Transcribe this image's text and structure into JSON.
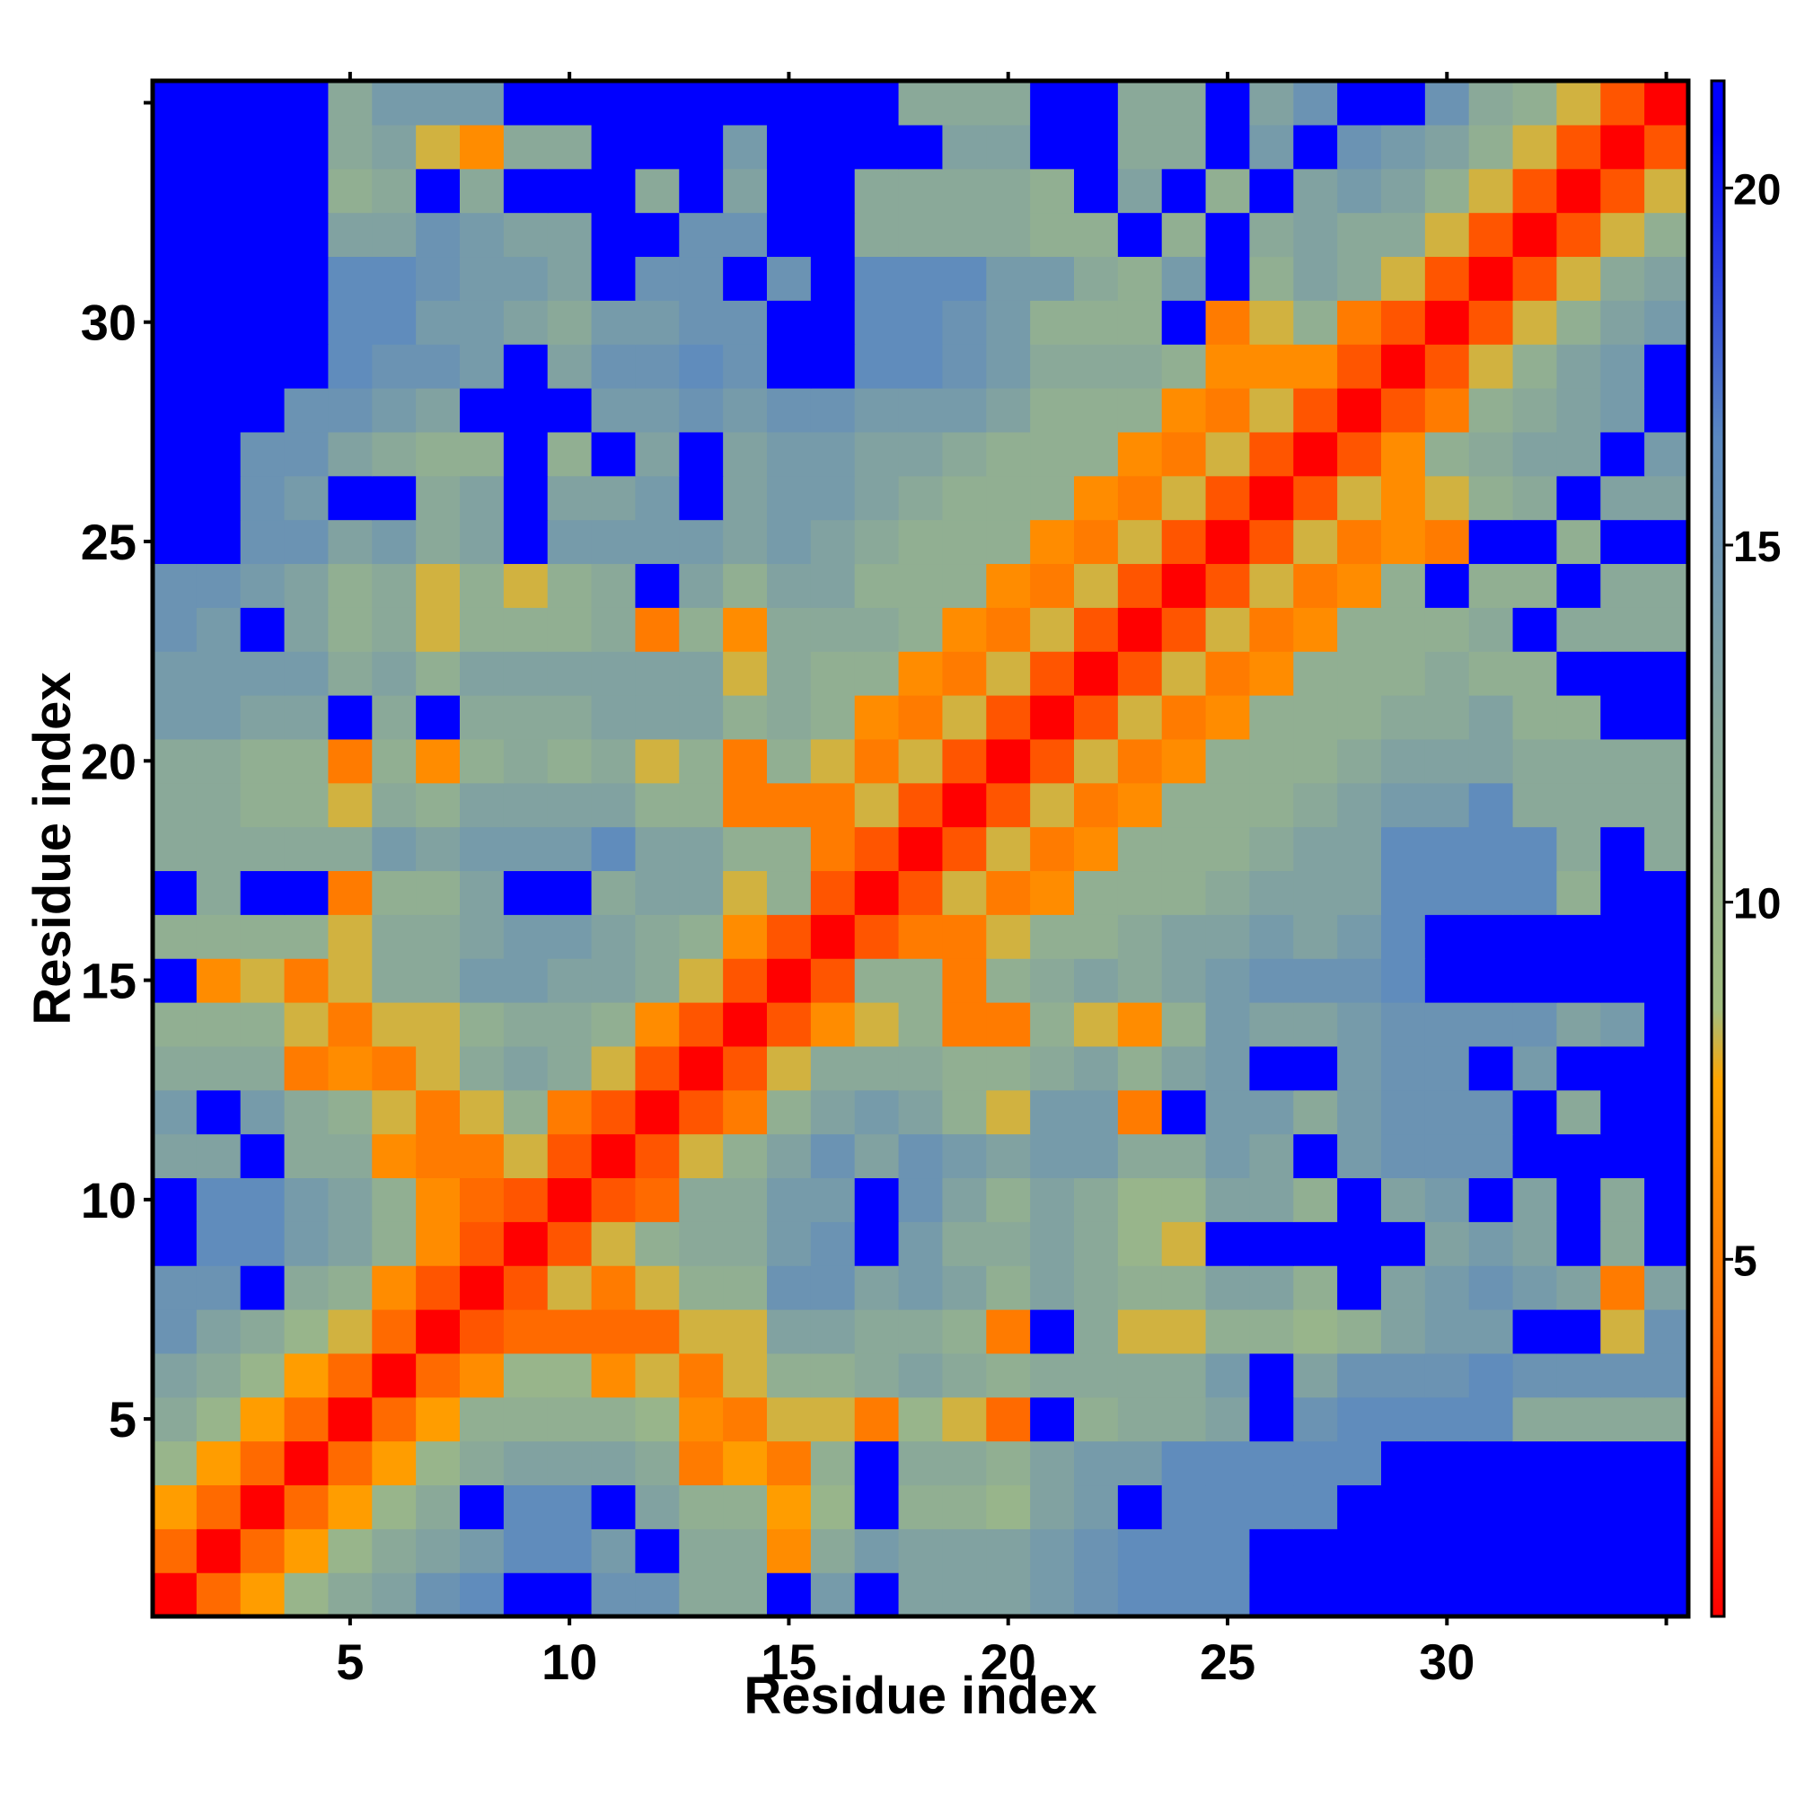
{
  "chart_data": {
    "type": "heatmap",
    "title": "",
    "xlabel": "Residue index",
    "ylabel": "Residue index",
    "n": 35,
    "xticks": [
      5,
      10,
      15,
      20,
      25,
      30
    ],
    "yticks": [
      5,
      10,
      15,
      20,
      25,
      30
    ],
    "xlim": [
      0.5,
      35.5
    ],
    "ylim": [
      0.5,
      35.5
    ],
    "colorbar": {
      "range": [
        0,
        21.5
      ],
      "ticks": [
        5,
        10,
        15,
        20
      ],
      "stops": [
        {
          "value": 0,
          "color": "#ff0000"
        },
        {
          "value": 3.4,
          "color": "#ff6000"
        },
        {
          "value": 7.5,
          "color": "#ffa500"
        },
        {
          "value": 8.5,
          "color": "#a2be80"
        },
        {
          "value": 12.5,
          "color": "#86a69c"
        },
        {
          "value": 16.5,
          "color": "#5a88c0"
        },
        {
          "value": 20.8,
          "color": "#0000ff"
        },
        {
          "value": 21.5,
          "color": "#0000ff"
        }
      ]
    },
    "note_rows": "values[i] is row for residue i+1 (bottom to top); values[i][j] is column residue j+1 (left to right)",
    "values": [
      [
        0,
        4,
        7,
        10,
        12,
        13,
        15,
        16,
        21,
        21,
        15,
        15,
        12,
        12,
        21,
        14,
        21,
        13,
        13,
        13,
        14,
        15,
        16,
        16,
        16,
        21,
        21,
        21,
        21,
        21,
        21,
        21,
        21,
        21,
        21
      ],
      [
        4,
        0,
        4,
        7,
        10,
        12,
        13,
        14,
        16,
        16,
        14,
        21,
        12,
        12,
        6,
        12,
        14,
        13,
        13,
        13,
        14,
        15,
        16,
        16,
        16,
        21,
        21,
        21,
        21,
        21,
        21,
        21,
        21,
        21,
        21
      ],
      [
        7,
        4,
        0,
        4,
        7,
        10,
        12,
        21,
        16,
        16,
        21,
        13,
        11,
        11,
        7,
        10,
        21,
        11,
        11,
        10,
        13,
        14,
        21,
        16,
        16,
        16,
        16,
        21,
        21,
        21,
        21,
        21,
        21,
        21,
        21
      ],
      [
        10,
        7,
        4,
        0,
        4,
        7,
        10,
        12,
        13,
        13,
        13,
        12,
        5,
        7,
        5,
        11,
        21,
        12,
        12,
        11,
        13,
        14,
        14,
        16,
        16,
        16,
        16,
        16,
        21,
        21,
        21,
        21,
        21,
        21,
        21
      ],
      [
        12,
        10,
        7,
        4,
        0,
        4,
        7,
        11,
        11,
        11,
        11,
        10,
        6,
        5,
        8,
        8,
        5,
        10,
        8,
        4,
        21,
        11,
        12,
        12,
        13,
        21,
        15,
        16,
        16,
        16,
        16,
        12,
        12,
        12,
        12
      ],
      [
        13,
        12,
        10,
        7,
        4,
        0,
        4,
        6,
        10,
        10,
        6,
        8,
        5,
        8,
        11,
        11,
        12,
        13,
        12,
        11,
        12,
        12,
        12,
        12,
        14,
        21,
        13,
        15,
        15,
        15,
        16,
        15,
        15,
        15,
        15
      ],
      [
        15,
        13,
        12,
        10,
        8,
        4,
        0,
        3,
        4,
        4,
        4,
        4,
        8,
        8,
        13,
        13,
        12,
        12,
        11,
        5,
        21,
        12,
        8,
        8,
        11,
        11,
        10,
        11,
        13,
        14,
        14,
        21,
        21,
        8,
        15
      ],
      [
        15,
        15,
        21,
        12,
        11,
        6,
        3,
        0,
        3,
        8,
        5,
        8,
        11,
        11,
        15,
        15,
        13,
        14,
        13,
        11,
        13,
        12,
        11,
        11,
        13,
        13,
        11,
        21,
        13,
        14,
        15,
        14,
        13,
        5,
        13
      ],
      [
        21,
        16,
        16,
        14,
        13,
        11,
        6,
        3,
        0,
        3,
        8,
        11,
        12,
        12,
        14,
        15,
        21,
        14,
        12,
        12,
        13,
        12,
        10,
        8,
        21,
        21,
        21,
        21,
        21,
        13,
        14,
        13,
        21,
        12,
        21
      ],
      [
        21,
        16,
        16,
        14,
        13,
        11,
        6,
        4,
        3,
        0,
        3,
        4,
        12,
        12,
        14,
        14,
        21,
        15,
        13,
        11,
        13,
        12,
        10,
        10,
        13,
        13,
        11,
        21,
        13,
        14,
        21,
        13,
        21,
        12,
        21
      ],
      [
        13,
        13,
        21,
        12,
        12,
        6,
        5,
        5,
        8,
        3,
        0,
        3,
        8,
        11,
        13,
        15,
        13,
        15,
        14,
        13,
        14,
        14,
        12,
        12,
        14,
        13,
        21,
        14,
        15,
        15,
        15,
        21,
        21,
        21,
        21
      ],
      [
        14,
        21,
        14,
        12,
        11,
        8,
        5,
        8,
        11,
        5,
        3,
        0,
        3,
        5,
        11,
        13,
        14,
        13,
        11,
        8,
        14,
        14,
        5,
        21,
        14,
        14,
        12,
        14,
        15,
        15,
        15,
        21,
        12,
        21,
        21
      ],
      [
        12,
        12,
        12,
        5,
        6,
        5,
        8,
        12,
        13,
        12,
        8,
        3,
        0,
        3,
        8,
        12,
        12,
        12,
        11,
        11,
        12,
        13,
        11,
        13,
        14,
        21,
        21,
        14,
        15,
        15,
        21,
        14,
        21,
        21,
        21
      ],
      [
        11,
        11,
        11,
        8,
        5,
        8,
        8,
        11,
        12,
        12,
        11,
        6,
        3,
        0,
        3,
        6,
        8,
        11,
        5,
        5,
        11,
        8,
        6,
        11,
        14,
        13,
        13,
        14,
        15,
        15,
        15,
        15,
        13,
        14,
        21
      ],
      [
        21,
        6,
        8,
        5,
        8,
        12,
        12,
        14,
        14,
        13,
        13,
        12,
        8,
        3,
        0,
        3,
        11,
        11,
        5,
        11,
        12,
        13,
        12,
        13,
        14,
        15,
        15,
        15,
        16,
        21,
        21,
        21,
        21,
        21,
        21
      ],
      [
        11,
        11,
        11,
        11,
        8,
        12,
        12,
        13,
        14,
        14,
        13,
        12,
        11,
        6,
        3,
        0,
        3,
        5,
        5,
        8,
        11,
        11,
        12,
        13,
        13,
        14,
        13,
        14,
        16,
        21,
        21,
        21,
        21,
        21,
        21
      ],
      [
        21,
        12,
        21,
        21,
        5,
        11,
        11,
        13,
        21,
        21,
        12,
        13,
        13,
        8,
        11,
        3,
        0,
        3,
        8,
        5,
        6,
        11,
        11,
        11,
        12,
        13,
        13,
        13,
        16,
        16,
        16,
        16,
        11,
        21,
        21
      ],
      [
        12,
        12,
        12,
        12,
        12,
        14,
        13,
        14,
        14,
        14,
        16,
        13,
        13,
        11,
        11,
        5,
        3,
        0,
        3,
        8,
        5,
        6,
        11,
        11,
        11,
        12,
        13,
        13,
        16,
        16,
        16,
        16,
        12,
        21,
        12
      ],
      [
        12,
        12,
        11,
        11,
        8,
        12,
        11,
        13,
        13,
        13,
        13,
        11,
        11,
        5,
        5,
        5,
        8,
        3,
        0,
        3,
        8,
        5,
        6,
        11,
        11,
        11,
        12,
        13,
        14,
        14,
        16,
        12,
        12,
        12,
        12
      ],
      [
        12,
        12,
        11,
        11,
        5,
        11,
        6,
        11,
        12,
        11,
        12,
        8,
        11,
        5,
        11,
        8,
        5,
        8,
        3,
        0,
        3,
        8,
        5,
        6,
        11,
        11,
        11,
        12,
        13,
        13,
        13,
        12,
        12,
        12,
        12
      ],
      [
        14,
        14,
        13,
        13,
        21,
        12,
        21,
        12,
        12,
        12,
        13,
        13,
        13,
        11,
        12,
        11,
        6,
        5,
        8,
        3,
        0,
        3,
        8,
        5,
        6,
        11,
        11,
        11,
        12,
        12,
        13,
        11,
        11,
        21,
        21
      ],
      [
        14,
        14,
        14,
        14,
        12,
        13,
        11,
        13,
        13,
        13,
        13,
        13,
        13,
        8,
        12,
        11,
        11,
        6,
        5,
        8,
        3,
        0,
        3,
        8,
        5,
        6,
        11,
        11,
        11,
        12,
        11,
        11,
        21,
        21,
        21
      ],
      [
        15,
        14,
        21,
        13,
        11,
        12,
        8,
        11,
        11,
        11,
        12,
        5,
        11,
        6,
        12,
        12,
        12,
        11,
        6,
        5,
        8,
        3,
        0,
        3,
        8,
        5,
        6,
        11,
        11,
        11,
        12,
        21,
        12,
        12,
        12
      ],
      [
        15,
        15,
        14,
        13,
        11,
        12,
        8,
        11,
        8,
        11,
        12,
        21,
        13,
        11,
        13,
        13,
        11,
        11,
        11,
        6,
        5,
        8,
        3,
        0,
        3,
        8,
        5,
        6,
        11,
        21,
        11,
        11,
        21,
        12,
        12
      ],
      [
        21,
        21,
        15,
        15,
        13,
        14,
        12,
        13,
        21,
        14,
        14,
        14,
        14,
        13,
        14,
        13,
        12,
        11,
        11,
        11,
        6,
        5,
        8,
        3,
        0,
        3,
        8,
        5,
        6,
        5,
        21,
        21,
        11,
        21,
        21
      ],
      [
        21,
        21,
        15,
        14,
        21,
        21,
        12,
        13,
        21,
        13,
        13,
        14,
        21,
        13,
        14,
        14,
        13,
        12,
        11,
        11,
        11,
        6,
        5,
        8,
        3,
        0,
        3,
        8,
        6,
        8,
        11,
        12,
        21,
        13,
        13
      ],
      [
        21,
        21,
        15,
        15,
        13,
        12,
        11,
        11,
        21,
        11,
        21,
        13,
        21,
        13,
        14,
        14,
        13,
        13,
        12,
        11,
        11,
        11,
        6,
        5,
        8,
        3,
        0,
        3,
        6,
        11,
        12,
        13,
        13,
        21,
        14
      ],
      [
        21,
        21,
        21,
        15,
        15,
        14,
        13,
        21,
        21,
        21,
        14,
        14,
        15,
        14,
        15,
        15,
        14,
        14,
        14,
        13,
        11,
        11,
        11,
        6,
        5,
        8,
        3,
        0,
        3,
        5,
        11,
        12,
        13,
        14,
        21
      ],
      [
        21,
        21,
        21,
        21,
        16,
        15,
        15,
        14,
        21,
        13,
        15,
        15,
        16,
        15,
        21,
        21,
        16,
        16,
        15,
        14,
        12,
        12,
        12,
        11,
        6,
        6,
        6,
        3,
        0,
        3,
        8,
        11,
        13,
        14,
        21
      ],
      [
        21,
        21,
        21,
        21,
        16,
        16,
        14,
        14,
        13,
        12,
        14,
        14,
        15,
        15,
        21,
        21,
        16,
        16,
        15,
        14,
        11,
        11,
        11,
        21,
        5,
        8,
        11,
        5,
        3,
        0,
        3,
        8,
        11,
        13,
        14
      ],
      [
        21,
        21,
        21,
        21,
        16,
        16,
        15,
        14,
        14,
        13,
        21,
        15,
        15,
        21,
        15,
        21,
        16,
        16,
        16,
        14,
        14,
        12,
        11,
        14,
        21,
        11,
        13,
        12,
        8,
        3,
        0,
        3,
        8,
        12,
        13
      ],
      [
        21,
        21,
        21,
        21,
        13,
        13,
        15,
        14,
        13,
        13,
        21,
        21,
        15,
        15,
        21,
        21,
        12,
        12,
        12,
        12,
        11,
        11,
        21,
        11,
        21,
        12,
        13,
        12,
        12,
        8,
        3,
        0,
        3,
        8,
        11
      ],
      [
        21,
        21,
        21,
        21,
        11,
        12,
        21,
        12,
        21,
        21,
        21,
        12,
        21,
        13,
        21,
        21,
        12,
        12,
        12,
        12,
        11,
        21,
        13,
        21,
        11,
        21,
        13,
        14,
        13,
        11,
        8,
        3,
        0,
        3,
        8
      ],
      [
        21,
        21,
        21,
        21,
        12,
        13,
        8,
        6,
        12,
        12,
        21,
        21,
        21,
        14,
        21,
        21,
        21,
        21,
        13,
        13,
        21,
        21,
        12,
        12,
        21,
        14,
        21,
        15,
        14,
        13,
        11,
        8,
        3,
        0,
        3
      ],
      [
        21,
        21,
        21,
        21,
        12,
        14,
        14,
        14,
        21,
        21,
        21,
        21,
        21,
        21,
        21,
        21,
        21,
        12,
        12,
        12,
        21,
        21,
        12,
        12,
        21,
        13,
        15,
        21,
        21,
        15,
        12,
        11,
        8,
        3,
        0
      ]
    ]
  }
}
